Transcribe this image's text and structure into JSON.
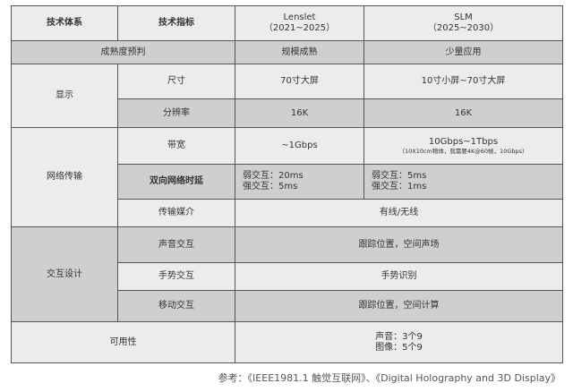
{
  "header": {
    "col1": "技术体系",
    "col2": "技术指标",
    "col3_line1": "Lenslet",
    "col3_line2": "（2021~2025）",
    "col4_line1": "SLM",
    "col4_line2": "（2025~2030）"
  },
  "rows": {
    "maturity": {
      "label": "成熟度预判",
      "lenslet": "规模成熟",
      "slm": "少量应用"
    },
    "display": {
      "group": "显示",
      "size": {
        "label": "尺寸",
        "lenslet": "70寸大屏",
        "slm": "10寸小屏~70寸大屏"
      },
      "resolution": {
        "label": "分辨率",
        "lenslet": "16K",
        "slm": "16K"
      }
    },
    "network": {
      "group": "网络传输",
      "bandwidth": {
        "label": "带宽",
        "lenslet": "~1Gbps",
        "slm": "10Gbps~1Tbps",
        "slm_note": "（10X10cm物体，就需要4K@60帧，10Gbps）"
      },
      "latency": {
        "label": "双向网络时延",
        "lenslet_1": "弱交互：20ms",
        "lenslet_2": "强交互：5ms",
        "slm_1": "弱交互：5ms",
        "slm_2": "强交互：1ms"
      },
      "medium": {
        "label": "传输媒介",
        "value": "有线/无线"
      }
    },
    "interaction": {
      "group": "交互设计",
      "sound": {
        "label": "声音交互",
        "value": "跟踪位置，空间声场"
      },
      "gesture": {
        "label": "手势交互",
        "value": "手势识别"
      },
      "motion": {
        "label": "移动交互",
        "value": "跟踪位置，空间计算"
      }
    },
    "availability": {
      "label": "可用性",
      "value_1": "声音：3个9",
      "value_2": "图像：5个9"
    }
  },
  "reference": "参考：《IEEE1981.1 触觉互联网》、《Digital Holography and 3D Display》"
}
